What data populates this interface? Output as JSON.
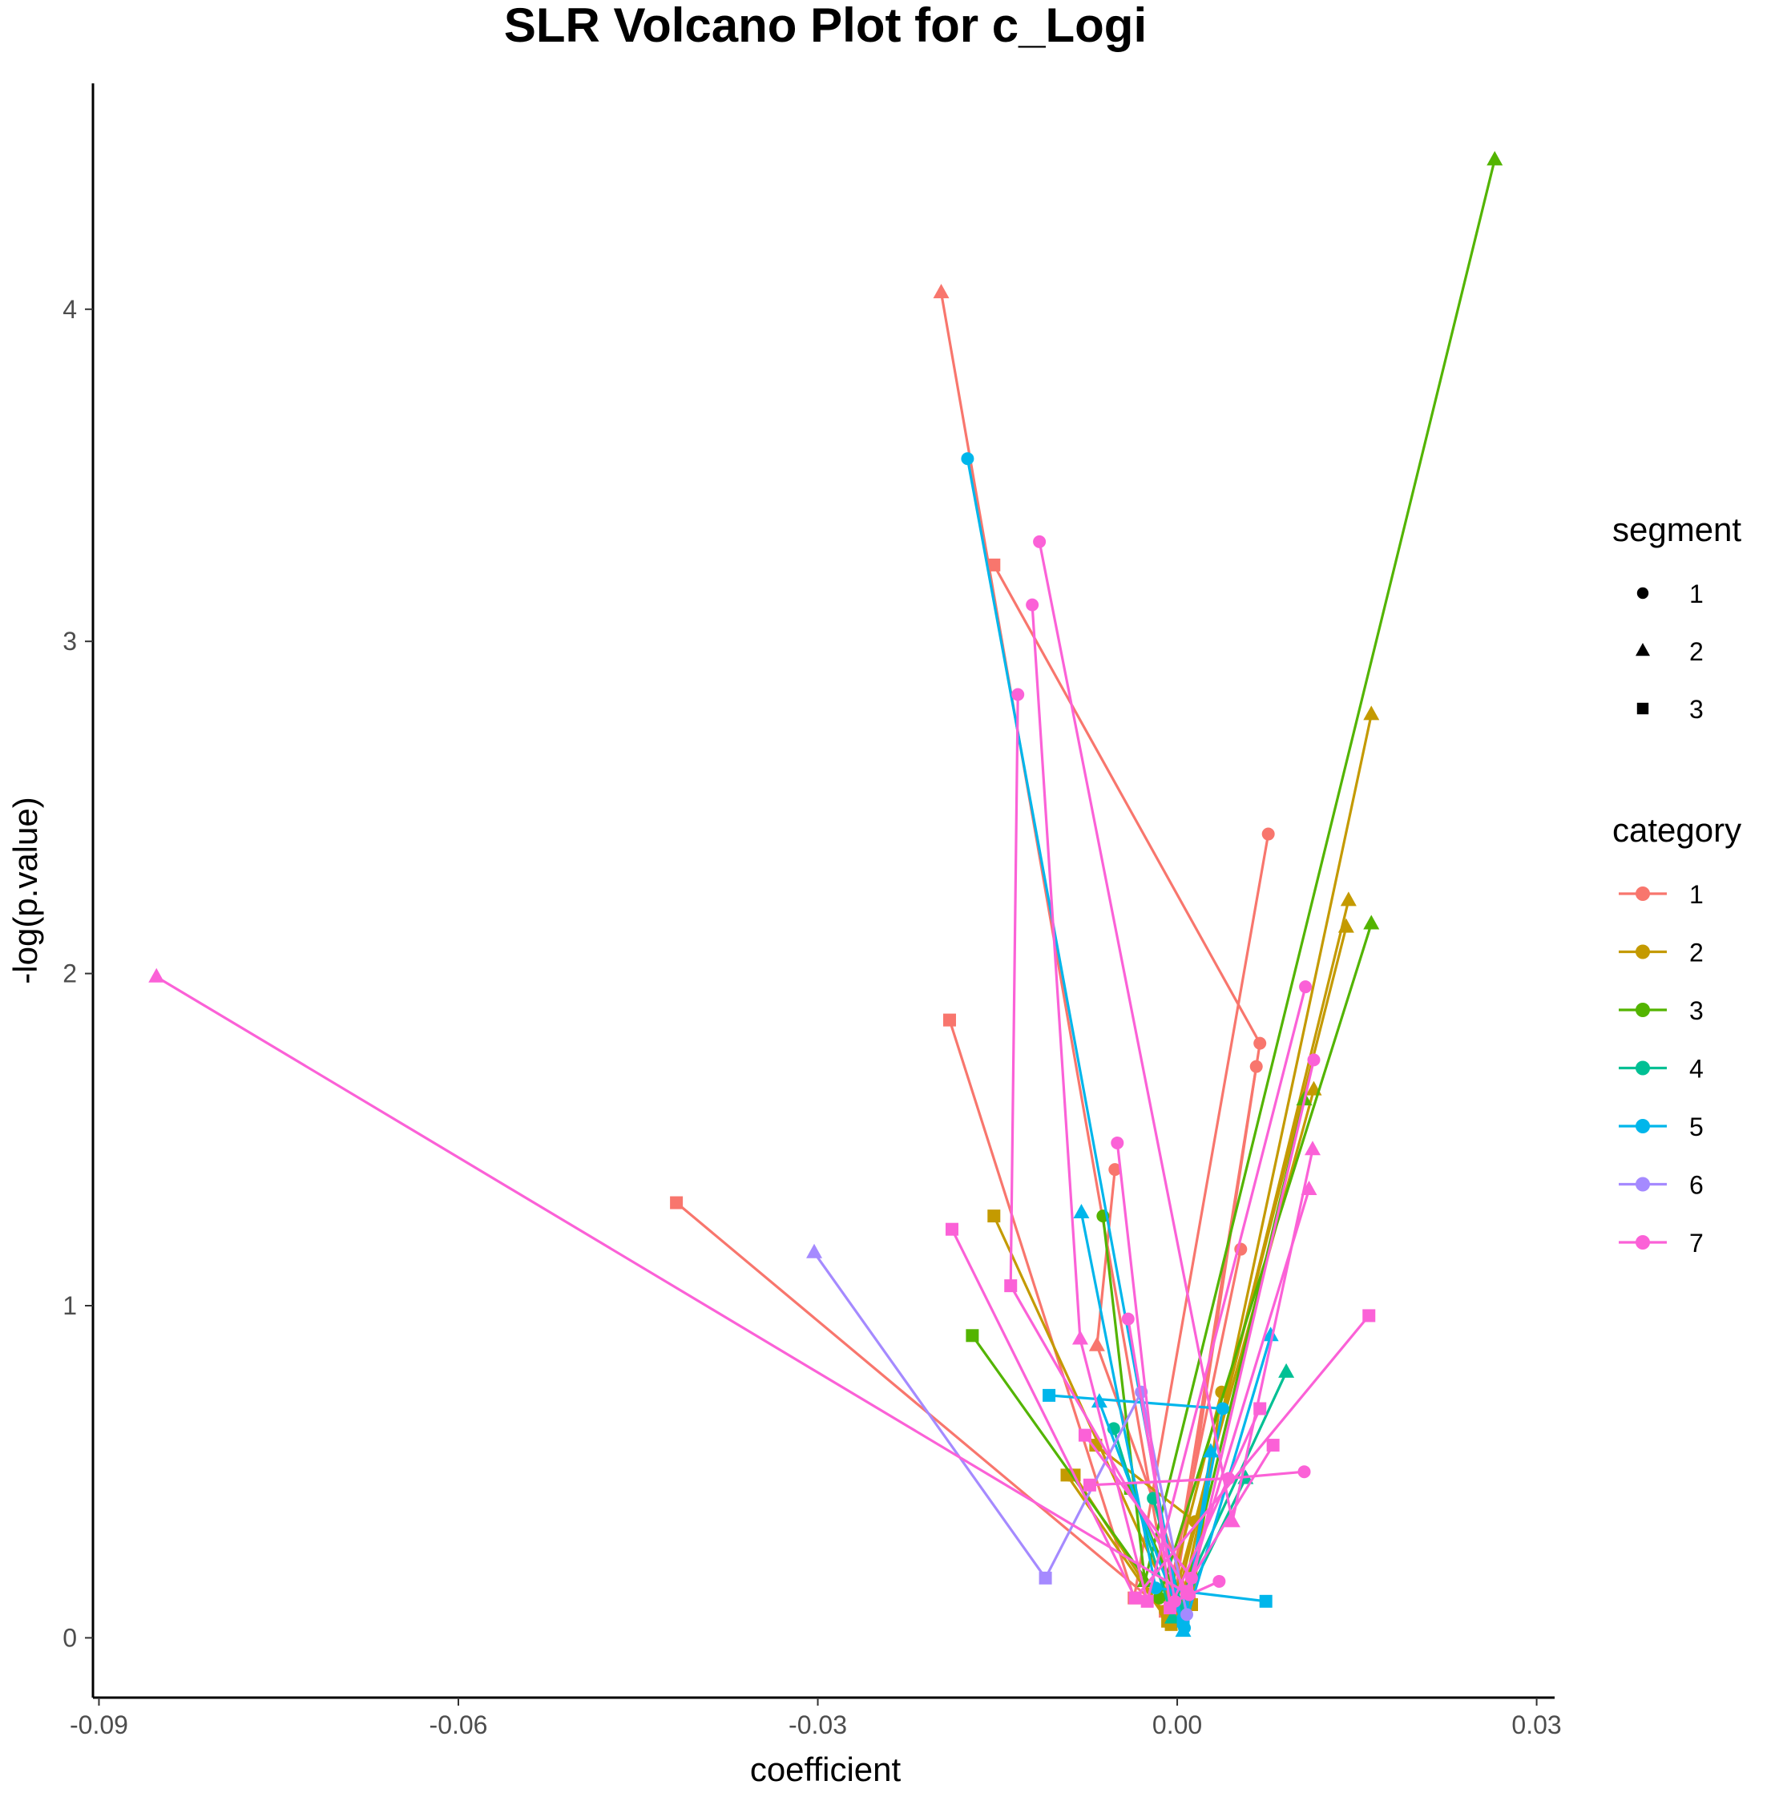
{
  "chart_data": {
    "type": "line",
    "title": "SLR Volcano Plot for c_Logi",
    "xlabel": "coefficient",
    "ylabel": "-log(p.value)",
    "xlim": [
      -0.0905,
      0.0315
    ],
    "ylim": [
      -0.18,
      4.68
    ],
    "xticks": [
      -0.09,
      -0.06,
      -0.03,
      0.0,
      0.03
    ],
    "xtick_labels": [
      "-0.09",
      "-0.06",
      "-0.03",
      "0.00",
      "0.03"
    ],
    "yticks": [
      0,
      1,
      2,
      3,
      4
    ],
    "ytick_labels": [
      "0",
      "1",
      "2",
      "3",
      "4"
    ],
    "grid": false,
    "legend_position": "right",
    "shape_legend": {
      "title": "segment",
      "items": [
        {
          "label": "1",
          "shape": "circle"
        },
        {
          "label": "2",
          "shape": "triangle"
        },
        {
          "label": "3",
          "shape": "square"
        }
      ]
    },
    "color_legend": {
      "title": "category",
      "items": [
        {
          "label": "1",
          "color": "#F8766D"
        },
        {
          "label": "2",
          "color": "#C49A00"
        },
        {
          "label": "3",
          "color": "#53B400"
        },
        {
          "label": "4",
          "color": "#00C094"
        },
        {
          "label": "5",
          "color": "#00B6EB"
        },
        {
          "label": "6",
          "color": "#A58AFF"
        },
        {
          "label": "7",
          "color": "#FB61D7"
        }
      ]
    },
    "series": [
      {
        "category": "1",
        "color": "#F8766D",
        "paths": [
          [
            [
              -0.0197,
              4.05,
              2
            ],
            [
              -0.0006,
              0.1,
              1
            ],
            [
              0.0066,
              1.72,
              1
            ]
          ],
          [
            [
              -0.0153,
              3.23,
              3
            ],
            [
              0.0069,
              1.79,
              1
            ],
            [
              -0.0004,
              0.08,
              3
            ]
          ],
          [
            [
              -0.019,
              1.86,
              3
            ],
            [
              -0.0036,
              0.12,
              3
            ],
            [
              0.0076,
              2.42,
              1
            ]
          ],
          [
            [
              -0.0418,
              1.31,
              3
            ],
            [
              -0.001,
              0.08,
              3
            ],
            [
              0.0053,
              1.17,
              1
            ]
          ],
          [
            [
              -0.0052,
              1.41,
              1
            ],
            [
              -0.0067,
              0.88,
              2
            ],
            [
              0.001,
              0.12,
              3
            ]
          ]
        ]
      },
      {
        "category": "2",
        "color": "#C49A00",
        "paths": [
          [
            [
              -0.0153,
              1.27,
              3
            ],
            [
              0.0001,
              0.06,
              3
            ],
            [
              0.0162,
              2.78,
              2
            ]
          ],
          [
            [
              -0.0086,
              0.49,
              3
            ],
            [
              -0.0005,
              0.04,
              3
            ],
            [
              0.0143,
              2.22,
              2
            ]
          ],
          [
            [
              -0.0068,
              0.58,
              3
            ],
            [
              0.0015,
              0.35,
              1
            ],
            [
              0.0141,
              2.14,
              2
            ]
          ],
          [
            [
              -0.0092,
              0.49,
              3
            ],
            [
              -0.0008,
              0.05,
              3
            ],
            [
              0.0114,
              1.65,
              2
            ]
          ],
          [
            [
              -0.001,
              0.08,
              1
            ],
            [
              0.0037,
              0.74,
              1
            ],
            [
              0.0012,
              0.1,
              3
            ]
          ]
        ]
      },
      {
        "category": "3",
        "color": "#53B400",
        "paths": [
          [
            [
              -0.0062,
              1.27,
              1
            ],
            [
              -0.0027,
              0.17,
              2
            ],
            [
              0.0265,
              4.45,
              2
            ]
          ],
          [
            [
              -0.0171,
              0.91,
              3
            ],
            [
              -0.0015,
              0.12,
              1
            ],
            [
              0.0162,
              2.15,
              2
            ]
          ],
          [
            [
              -0.0039,
              0.45,
              3
            ],
            [
              0.0004,
              0.09,
              1
            ],
            [
              0.0106,
              1.62,
              2
            ]
          ]
        ]
      },
      {
        "category": "4",
        "color": "#00C094",
        "paths": [
          [
            [
              -0.0053,
              0.63,
              1
            ],
            [
              -0.0004,
              0.06,
              2
            ],
            [
              0.0091,
              0.8,
              2
            ]
          ],
          [
            [
              -0.002,
              0.42,
              1
            ],
            [
              0.0004,
              0.09,
              1
            ],
            [
              0.0057,
              0.48,
              2
            ]
          ]
        ]
      },
      {
        "category": "5",
        "color": "#00B6EB",
        "paths": [
          [
            [
              -0.0175,
              3.55,
              1
            ],
            [
              0.0005,
              0.02,
              2
            ],
            [
              0.0078,
              0.91,
              2
            ]
          ],
          [
            [
              -0.008,
              1.28,
              2
            ],
            [
              -0.0018,
              0.15,
              1
            ],
            [
              0.0074,
              0.11,
              3
            ]
          ],
          [
            [
              -0.0107,
              0.73,
              3
            ],
            [
              0.0038,
              0.69,
              1
            ],
            [
              0.0005,
              0.05,
              3
            ]
          ],
          [
            [
              -0.0065,
              0.71,
              2
            ],
            [
              0.0006,
              0.03,
              1
            ],
            [
              0.0028,
              0.56,
              2
            ]
          ]
        ]
      },
      {
        "category": "6",
        "color": "#A58AFF",
        "paths": [
          [
            [
              -0.0303,
              1.16,
              2
            ],
            [
              -0.011,
              0.18,
              3
            ],
            [
              -0.003,
              0.74,
              1
            ],
            [
              0.0008,
              0.07,
              1
            ]
          ]
        ]
      },
      {
        "category": "7",
        "color": "#FB61D7",
        "paths": [
          [
            [
              -0.0852,
              1.99,
              2
            ],
            [
              0.001,
              0.13,
              1
            ],
            [
              0.0114,
              1.74,
              1
            ]
          ],
          [
            [
              -0.0115,
              3.3,
              1
            ],
            [
              0.0046,
              0.35,
              2
            ],
            [
              0.0113,
              1.47,
              2
            ]
          ],
          [
            [
              -0.0121,
              3.11,
              1
            ],
            [
              -0.0081,
              0.9,
              2
            ],
            [
              -0.0025,
              0.11,
              3
            ],
            [
              0.0107,
              1.96,
              1
            ]
          ],
          [
            [
              -0.0133,
              2.84,
              1
            ],
            [
              -0.0139,
              1.06,
              3
            ],
            [
              0.0008,
              0.14,
              3
            ],
            [
              0.011,
              1.35,
              2
            ]
          ],
          [
            [
              -0.0188,
              1.23,
              3
            ],
            [
              -0.0035,
              0.12,
              3
            ],
            [
              0.016,
              0.97,
              3
            ]
          ],
          [
            [
              -0.005,
              1.49,
              1
            ],
            [
              -0.0006,
              0.09,
              3
            ],
            [
              0.0069,
              0.69,
              3
            ]
          ],
          [
            [
              -0.0077,
              0.61,
              3
            ],
            [
              0.0012,
              0.18,
              1
            ],
            [
              0.008,
              0.58,
              3
            ]
          ],
          [
            [
              -0.0041,
              0.96,
              1
            ],
            [
              -0.0002,
              0.11,
              1
            ],
            [
              0.0035,
              0.17,
              1
            ]
          ],
          [
            [
              -0.0073,
              0.46,
              3
            ],
            [
              0.0043,
              0.48,
              1
            ],
            [
              0.0106,
              0.5,
              1
            ]
          ]
        ]
      }
    ]
  }
}
